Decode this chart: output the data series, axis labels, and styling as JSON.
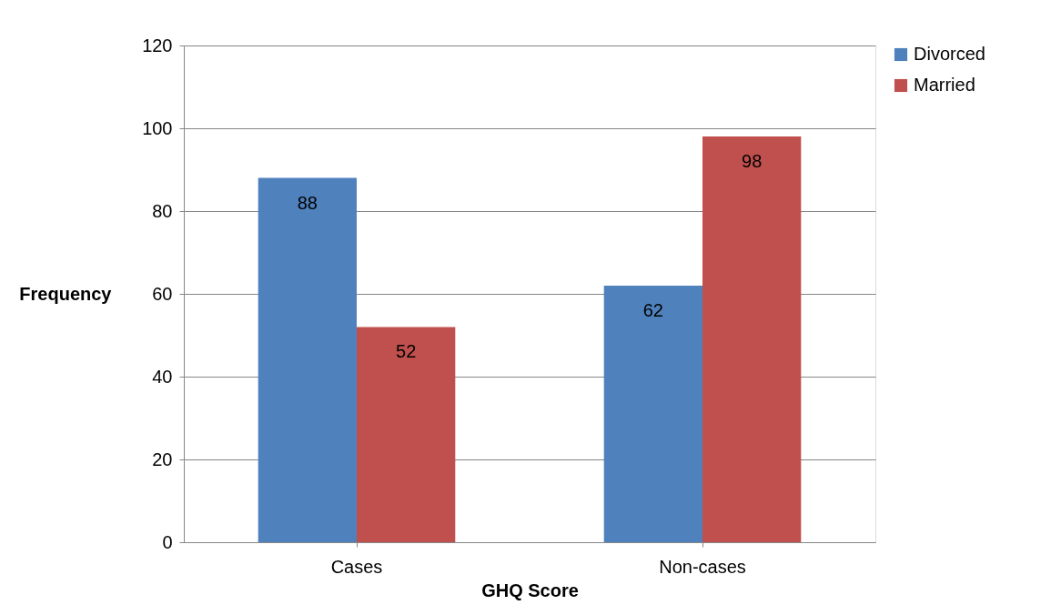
{
  "chart_data": {
    "type": "bar",
    "xlabel": "GHQ Score",
    "ylabel": "Frequency",
    "categories": [
      "Cases",
      "Non-cases"
    ],
    "series": [
      {
        "name": "Divorced",
        "color": "#4f81bd",
        "values": [
          88,
          62
        ]
      },
      {
        "name": "Married",
        "color": "#c0504d",
        "values": [
          52,
          98
        ]
      }
    ],
    "ylim": [
      0,
      120
    ],
    "yticks": [
      0,
      20,
      40,
      60,
      80,
      100,
      120
    ],
    "grid": "y",
    "legend": "right",
    "data_labels": true
  }
}
